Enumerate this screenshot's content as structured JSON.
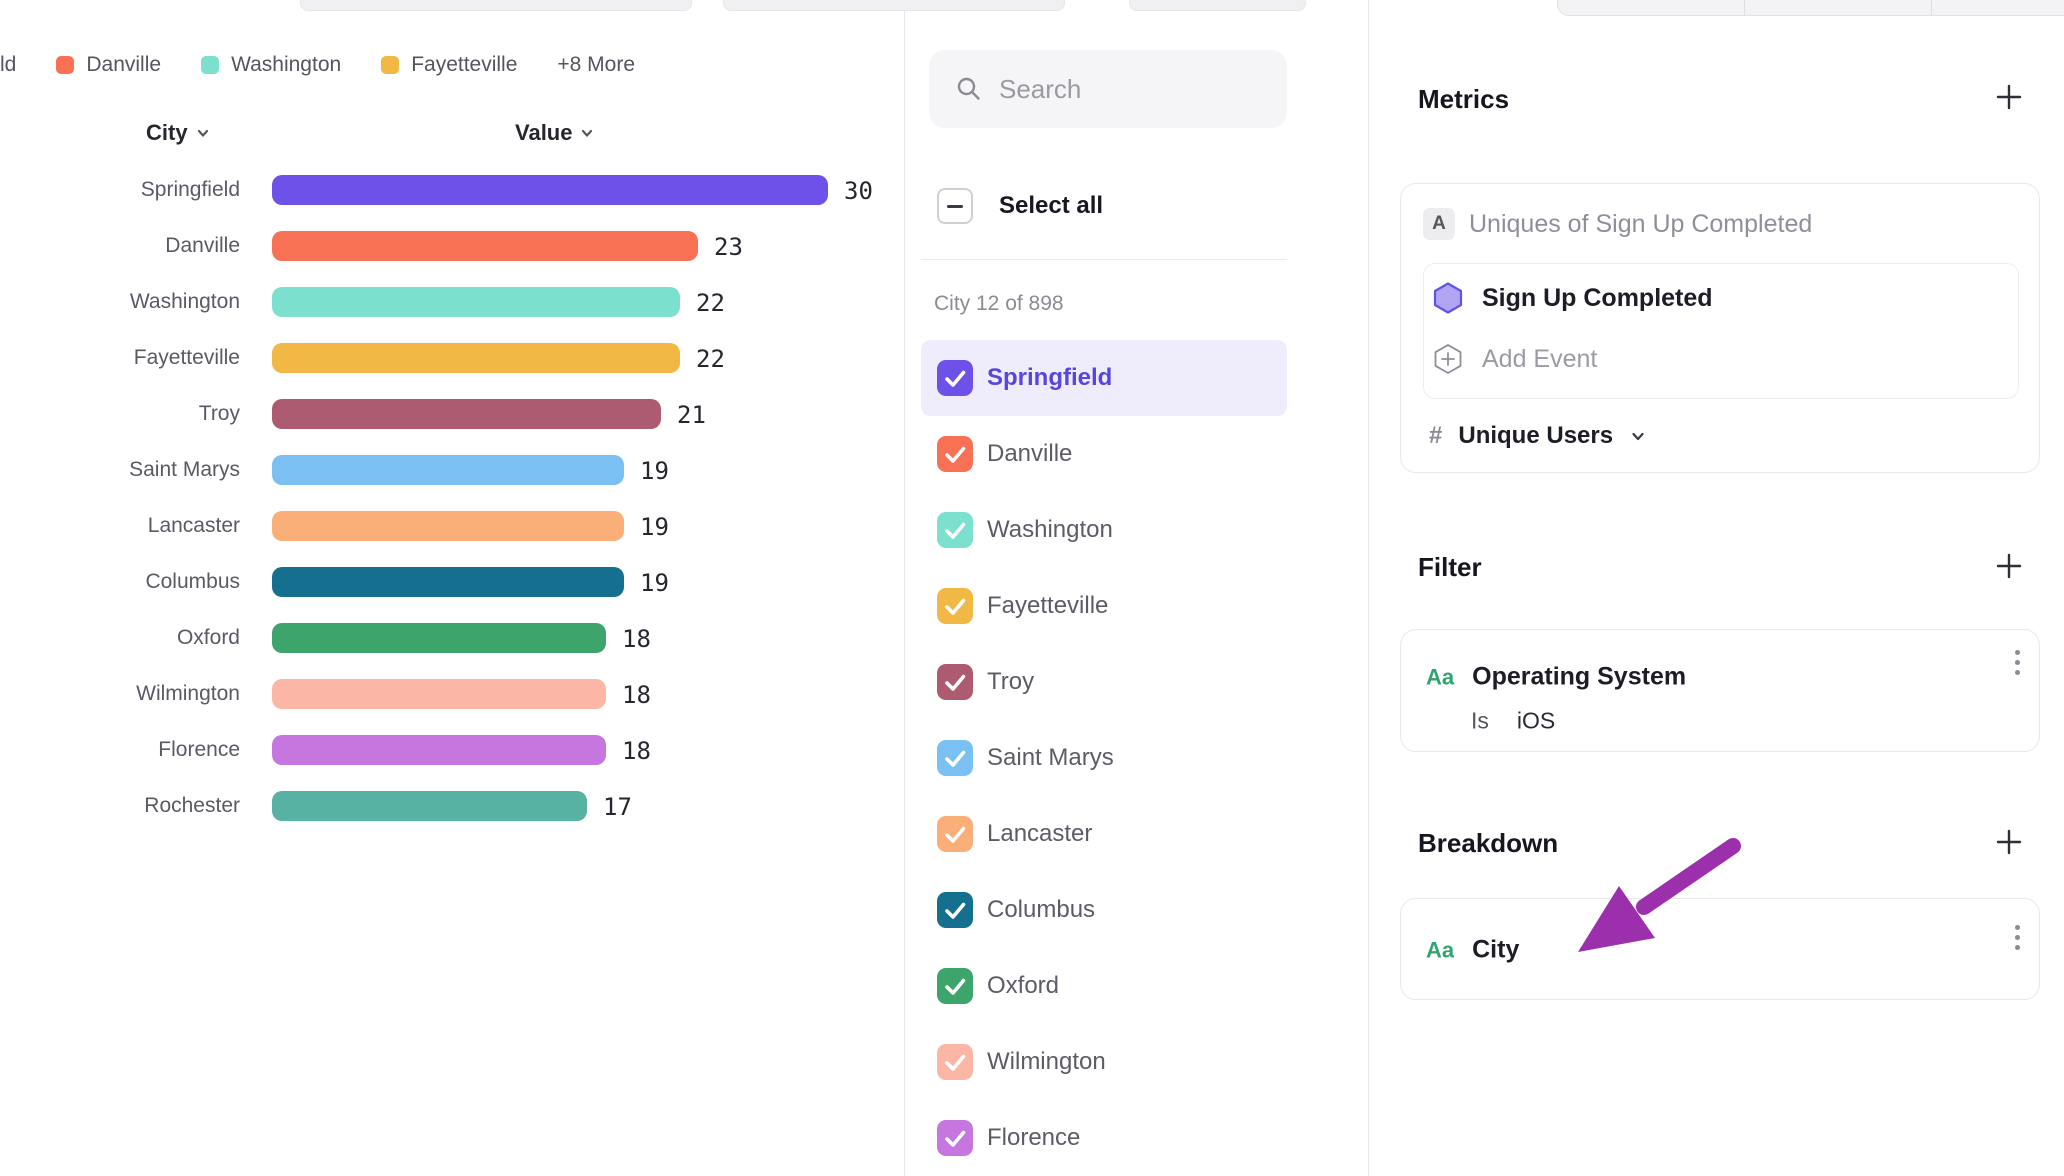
{
  "legend": {
    "partial_item": "ld",
    "items": [
      {
        "label": "Danville",
        "color": "#f97155"
      },
      {
        "label": "Washington",
        "color": "#7ce0cf"
      },
      {
        "label": "Fayetteville",
        "color": "#f2b845"
      }
    ],
    "more_label": "+8 More"
  },
  "chart": {
    "columns": {
      "city": "City",
      "value": "Value"
    },
    "rows": [
      {
        "city": "Springfield",
        "value": 30,
        "color": "#6d51e8"
      },
      {
        "city": "Danville",
        "value": 23,
        "color": "#f97155"
      },
      {
        "city": "Washington",
        "value": 22,
        "color": "#7ce0cf"
      },
      {
        "city": "Fayetteville",
        "value": 22,
        "color": "#f2b845"
      },
      {
        "city": "Troy",
        "value": 21,
        "color": "#ad5b70"
      },
      {
        "city": "Saint Marys",
        "value": 19,
        "color": "#7bc0f2"
      },
      {
        "city": "Lancaster",
        "value": 19,
        "color": "#fbaf78"
      },
      {
        "city": "Columbus",
        "value": 19,
        "color": "#156f8e"
      },
      {
        "city": "Oxford",
        "value": 18,
        "color": "#3da56b"
      },
      {
        "city": "Wilmington",
        "value": 18,
        "color": "#fbb6a5"
      },
      {
        "city": "Florence",
        "value": 18,
        "color": "#c577df"
      },
      {
        "city": "Rochester",
        "value": 17,
        "color": "#58b2a3"
      }
    ]
  },
  "chart_data": {
    "type": "bar",
    "orientation": "horizontal",
    "categories": [
      "Springfield",
      "Danville",
      "Washington",
      "Fayetteville",
      "Troy",
      "Saint Marys",
      "Lancaster",
      "Columbus",
      "Oxford",
      "Wilmington",
      "Florence",
      "Rochester"
    ],
    "values": [
      30,
      23,
      22,
      22,
      21,
      19,
      19,
      19,
      18,
      18,
      18,
      17
    ],
    "colors": [
      "#6d51e8",
      "#f97155",
      "#7ce0cf",
      "#f2b845",
      "#ad5b70",
      "#7bc0f2",
      "#fbaf78",
      "#156f8e",
      "#3da56b",
      "#fbb6a5",
      "#c577df",
      "#58b2a3"
    ],
    "title": "",
    "xlabel": "Value",
    "ylabel": "City",
    "xlim": [
      0,
      30
    ],
    "grid": false,
    "legend_position": "top",
    "data_labels": true
  },
  "selector": {
    "search_placeholder": "Search",
    "search_value": "",
    "select_all_label": "Select all",
    "select_all_state": "indeterminate",
    "count_label": "City 12 of 898",
    "items": [
      {
        "label": "Springfield",
        "color": "#6d51e8",
        "checked": true,
        "highlighted": true
      },
      {
        "label": "Danville",
        "color": "#f97155",
        "checked": true,
        "highlighted": false
      },
      {
        "label": "Washington",
        "color": "#7ce0cf",
        "checked": true,
        "highlighted": false
      },
      {
        "label": "Fayetteville",
        "color": "#f2b845",
        "checked": true,
        "highlighted": false
      },
      {
        "label": "Troy",
        "color": "#ad5b70",
        "checked": true,
        "highlighted": false
      },
      {
        "label": "Saint Marys",
        "color": "#7bc0f2",
        "checked": true,
        "highlighted": false
      },
      {
        "label": "Lancaster",
        "color": "#fbaf78",
        "checked": true,
        "highlighted": false
      },
      {
        "label": "Columbus",
        "color": "#156f8e",
        "checked": true,
        "highlighted": false
      },
      {
        "label": "Oxford",
        "color": "#3da56b",
        "checked": true,
        "highlighted": false
      },
      {
        "label": "Wilmington",
        "color": "#fbb6a5",
        "checked": true,
        "highlighted": false
      },
      {
        "label": "Florence",
        "color": "#c577df",
        "checked": true,
        "highlighted": false
      }
    ]
  },
  "panel": {
    "metrics": {
      "title": "Metrics",
      "badge": "A",
      "summary": "Uniques of Sign Up Completed",
      "event_name": "Sign Up Completed",
      "add_event_label": "Add Event",
      "measure_prefix": "#",
      "measure_label": "Unique Users"
    },
    "filter": {
      "title": "Filter",
      "property_type": "Aa",
      "property_name": "Operating System",
      "operator": "Is",
      "value": "iOS"
    },
    "breakdown": {
      "title": "Breakdown",
      "property_type": "Aa",
      "property_name": "City"
    }
  },
  "colors": {
    "accent_purple": "#6d51e8",
    "highlight_bg": "#efedfb",
    "highlight_text": "#5745e0",
    "aa_green": "#31a46f",
    "annotation_arrow": "#9c2fac"
  }
}
